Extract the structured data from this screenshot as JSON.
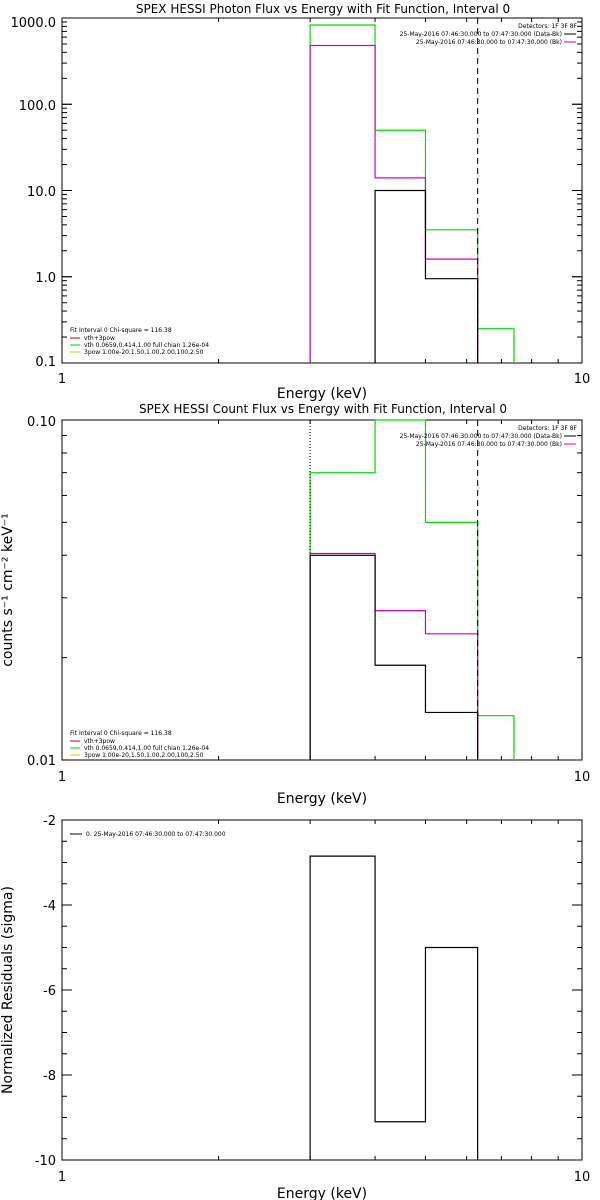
{
  "chart_data": [
    {
      "type": "line",
      "title": "SPEX HESSI Photon Flux vs Energy with Fit Function, Interval 0",
      "xlabel": "Energy (keV)",
      "ylabel": "",
      "xscale": "log",
      "yscale": "log",
      "xlim": [
        1,
        10
      ],
      "ylim": [
        0.1,
        1000
      ],
      "xticks": [
        "1",
        "10"
      ],
      "yticks": [
        "1000.0",
        "100.0",
        "10.0",
        "1.0",
        "0.1"
      ],
      "vlines": [
        {
          "x": 6.3,
          "style": "dashed"
        }
      ],
      "legend_top_right": {
        "detectors": "Detectors: 1F 3F 8F",
        "entries": [
          {
            "text": "25-May-2016 07:46:30.000 to 07:47:30.000 (Data-Bk)",
            "color": "#000000"
          },
          {
            "text": "25-May-2016 07:46:30.000 to 07:47:30.000 (Bk)",
            "color": "#cc00cc"
          }
        ]
      },
      "legend_bottom_left": {
        "header": "Fit Interval 0   Chi-square = 116.38",
        "entries": [
          {
            "text": "vth+3pow",
            "color": "#cc0000"
          },
          {
            "text": "vth 0.0659,0.414,1.00  full chian 1.26e-04",
            "color": "#00cc00"
          },
          {
            "text": "3pow 1.00e-20,1.50,1.00,2.00,100,2.50",
            "color": "#cccc00"
          }
        ]
      },
      "series": [
        {
          "color": "#00dd00",
          "edges": [
            3,
            4,
            5,
            6.3,
            7.4
          ],
          "values": [
            830,
            50,
            3.5,
            0.25
          ]
        },
        {
          "color": "#cc00cc",
          "edges": [
            3,
            4,
            5,
            6.3
          ],
          "values": [
            480,
            14,
            1.6
          ]
        },
        {
          "color": "#000000",
          "edges": [
            4,
            5,
            6.3
          ],
          "values": [
            10,
            0.95
          ]
        }
      ]
    },
    {
      "type": "line",
      "title": "SPEX HESSI Count Flux vs Energy with Fit Function, Interval 0",
      "xlabel": "Energy (keV)",
      "ylabel": "counts s⁻¹ cm⁻² keV⁻¹",
      "xscale": "log",
      "yscale": "log",
      "xlim": [
        1,
        10
      ],
      "ylim": [
        0.01,
        0.1
      ],
      "xticks": [
        "1",
        "10"
      ],
      "yticks": [
        "0.10",
        "0.01"
      ],
      "vlines": [
        {
          "x": 3,
          "style": "dotted"
        },
        {
          "x": 6.3,
          "style": "dashed"
        }
      ],
      "legend_top_right": {
        "detectors": "Detectors: 1F 3F 8F",
        "entries": [
          {
            "text": "25-May-2016 07:46:30.000 to 07:47:30.000 (Data-Bk)",
            "color": "#000000"
          },
          {
            "text": "25-May-2016 07:46:30.000 to 07:47:30.000 (Bk)",
            "color": "#cc00cc"
          }
        ]
      },
      "legend_bottom_left": {
        "header": "Fit Interval 0   Chi-square = 116.38",
        "entries": [
          {
            "text": "vth+3pow",
            "color": "#cc0000"
          },
          {
            "text": "vth 0.0659,0.414,1.00  full chian 1.26e-04",
            "color": "#00cc00"
          },
          {
            "text": "3pow 1.00e-20,1.50,1.00,2.00,100,2.50",
            "color": "#cccc00"
          }
        ]
      },
      "series": [
        {
          "color": "#00dd00",
          "edges": [
            3,
            4,
            5,
            6.3,
            7.4
          ],
          "values": [
            0.07,
            0.1,
            0.05,
            0.0135
          ],
          "clip_floor": true
        },
        {
          "color": "#cc00cc",
          "edges": [
            3,
            4,
            5,
            6.3
          ],
          "values": [
            0.0405,
            0.0275,
            0.0235
          ],
          "clip_floor": true
        },
        {
          "color": "#000000",
          "edges": [
            3,
            4,
            5,
            6.3
          ],
          "values": [
            0.04,
            0.019,
            0.0138
          ],
          "clip_floor": true
        }
      ]
    },
    {
      "type": "line",
      "title": "",
      "xlabel": "Energy (keV)",
      "ylabel": "Normalized Residuals (sigma)",
      "xscale": "log",
      "yscale": "linear",
      "xlim": [
        1,
        10
      ],
      "ylim": [
        -10,
        -2
      ],
      "xticks": [
        "1",
        "10"
      ],
      "yticks": [
        "-2",
        "-4",
        "-6",
        "-8",
        "-10"
      ],
      "vlines": [],
      "legend_top_left": {
        "entries": [
          {
            "text": "0. 25-May-2016 07:46:30.000 to 07:47:30.000",
            "color": "#000000"
          }
        ]
      },
      "series": [
        {
          "color": "#000000",
          "edges": [
            3,
            4,
            5,
            6.3
          ],
          "values": [
            -2.85,
            -9.1,
            -5.0
          ],
          "clip_floor": true
        }
      ]
    }
  ]
}
